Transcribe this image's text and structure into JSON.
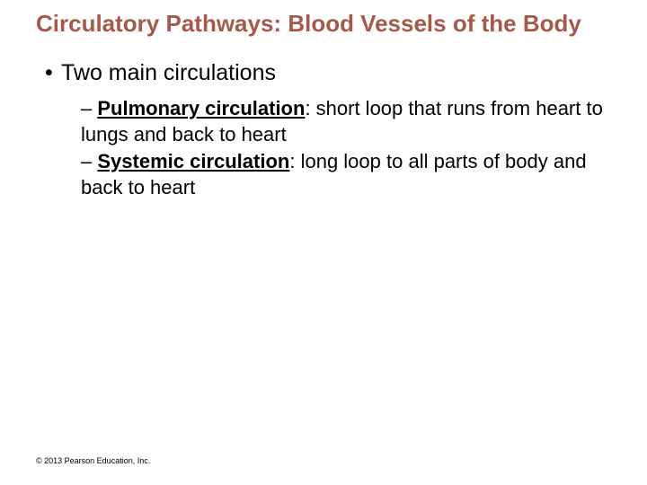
{
  "colors": {
    "title_color": "#a6594a",
    "body_text_color": "#000000",
    "background_color": "#ffffff"
  },
  "fonts": {
    "title_fontsize": 26,
    "bullet1_fontsize": 25,
    "bullet2_fontsize": 22,
    "copyright_fontsize": 9,
    "family": "Arial"
  },
  "title": "Circulatory Pathways: Blood Vessels of the Body",
  "bullets": {
    "level1": {
      "marker": "•",
      "text": "Two main circulations"
    },
    "level2": [
      {
        "marker": "–",
        "bold_underline": "Pulmonary circulation",
        "rest": ": short loop that runs from heart to lungs and back to heart"
      },
      {
        "marker": "–",
        "bold_underline": "Systemic circulation",
        "rest": ": long loop to all parts of body and back to heart"
      }
    ]
  },
  "copyright": "© 2013 Pearson Education, Inc."
}
